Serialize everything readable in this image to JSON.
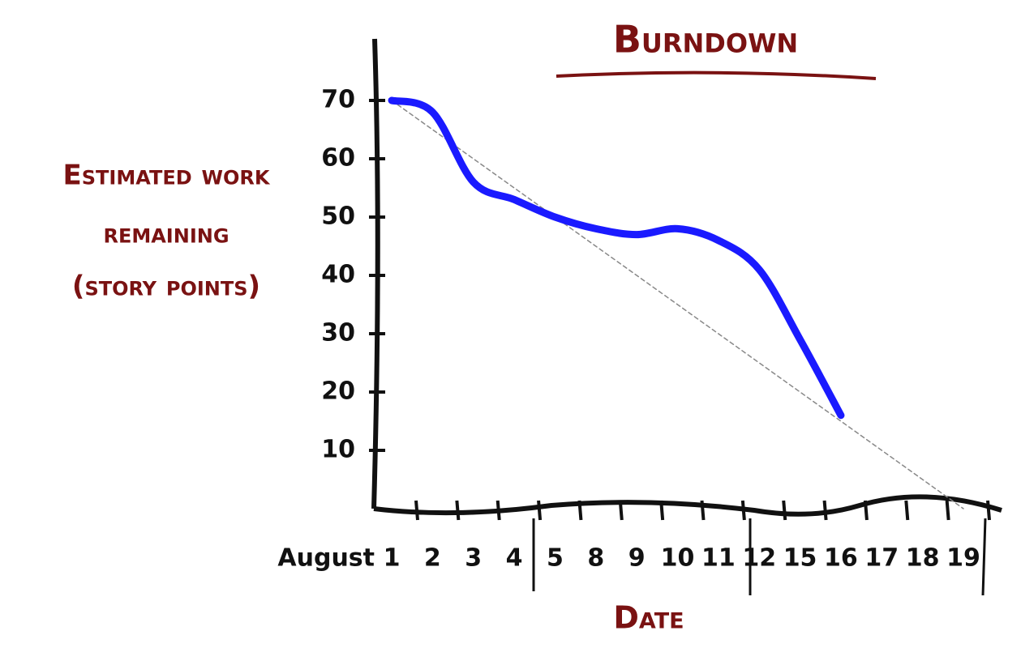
{
  "chart_data": {
    "type": "line",
    "title": "Burndown",
    "ylabel": [
      "Estimated work",
      "remaining",
      "(story points)"
    ],
    "xlabel": "Date",
    "x_prefix": "August",
    "categories": [
      "1",
      "2",
      "3",
      "4",
      "5",
      "8",
      "9",
      "10",
      "11",
      "12",
      "15",
      "16",
      "17",
      "18",
      "19"
    ],
    "series": [
      {
        "color": "#1a1aff",
        "values": [
          70,
          68,
          56,
          53,
          50,
          48,
          47,
          48,
          46,
          41,
          29,
          16,
          null,
          null,
          null
        ]
      },
      {
        "color": "#888888",
        "dashed": true,
        "values": [
          70,
          65,
          60,
          55,
          50,
          45,
          40,
          35,
          30,
          25,
          20,
          15,
          10,
          5,
          0
        ]
      }
    ],
    "ylim": [
      0,
      75
    ],
    "yticks": [
      10,
      20,
      30,
      40,
      50,
      60,
      70
    ],
    "grid": false
  }
}
